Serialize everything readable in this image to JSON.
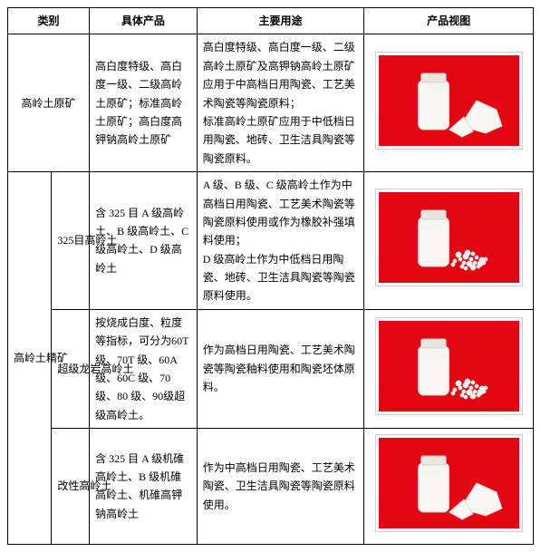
{
  "headers": {
    "category": "类别",
    "product": "具体产品",
    "usage": "主要用途",
    "image": "产品视图"
  },
  "groups": [
    {
      "category": "高岭土原矿",
      "rows": [
        {
          "sub": "",
          "product": "高白度特级、高白度一级、二级高岭土原矿；标准高岭土原矿；高白度高钾钠高岭土原矿",
          "usage": "高白度特级、高白度一级、二级高岭土原矿及高钾钠高岭土原矿应用于中高档日用陶瓷、工艺美术陶瓷等陶瓷原料；\n标准高岭土原矿应用于中低档日用陶瓷、地砖、卫生洁具陶瓷等陶瓷原料。",
          "thumb": {
            "bg": "#e30613",
            "jar": true,
            "pile": "rock"
          }
        }
      ]
    },
    {
      "category": "高岭土精矿",
      "rows": [
        {
          "sub": "325目高岭土",
          "product": "含 325 目 A 级高岭土、B 级高岭土、C 级高岭土、D 级高岭土",
          "usage": "A 级、B 级、C 级高岭土作为中高档日用陶瓷、工艺美术陶瓷等陶瓷原料使用或作为橡胶补强填料使用；\nD 级高岭土作为中低档日用陶瓷、地砖、卫生洁具陶瓷等陶瓷原料使用。",
          "thumb": {
            "bg": "#e30613",
            "jar": true,
            "pile": "granules"
          }
        },
        {
          "sub": "超级龙岩高岭土",
          "product": "按烧成白度、粒度等指标，可分为60T 级、70T 级、60A 级、60C 级、70 级、80 级、90级超级高岭土。",
          "usage": "作为高档日用陶瓷、工艺美术陶瓷等陶瓷釉料使用和陶瓷坯体原料。",
          "thumb": {
            "bg": "#e30613",
            "jar": true,
            "pile": "granules"
          }
        },
        {
          "sub": "改性高岭土",
          "product": "含 325 目 A 级机碓高岭土、B 级机碓高岭土、机碓高钾钠高岭土",
          "usage": "作为中高档日用陶瓷、工艺美术陶瓷、卫生洁具陶瓷等陶瓷原料使用。",
          "thumb": {
            "bg": "#e30613",
            "jar": true,
            "pile": "rock"
          }
        }
      ]
    }
  ],
  "thumb_style": {
    "width": 155,
    "height": 100,
    "jar_fill": "#f5f5f2",
    "jar_stroke": "#d0cec8",
    "lid_fill": "#e8e6df",
    "material_fill": "#f8f7f3",
    "material_shadow": "#dddbd2"
  }
}
